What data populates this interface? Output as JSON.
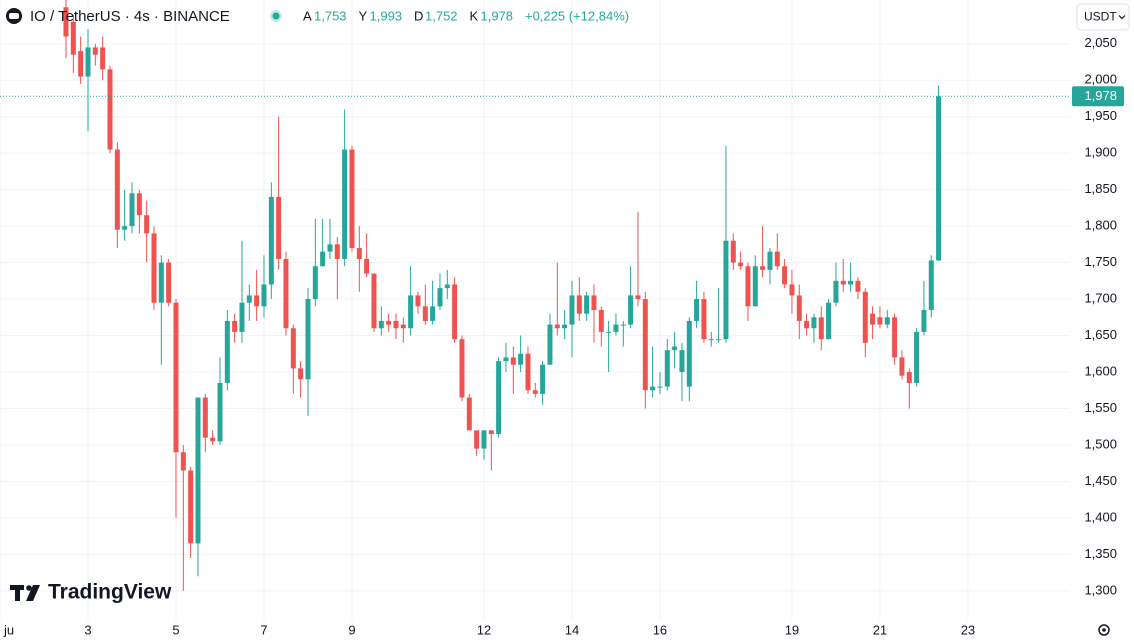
{
  "chart_data": {
    "type": "candlestick",
    "title": "IO / TetherUS · 4s · BINANCE",
    "ohlc_legend": [
      {
        "key": "A",
        "label": "1,753"
      },
      {
        "key": "Y",
        "label": "1,993"
      },
      {
        "key": "D",
        "label": "1,752"
      },
      {
        "key": "K",
        "label": "1,978"
      }
    ],
    "change_label": "+0,225 (+12,84%)",
    "currency": "USDT",
    "watermark": "TradingView",
    "last_price": {
      "value": 1.978,
      "label": "1,978"
    },
    "up_color": "#26a69a",
    "down_color": "#ef5350",
    "grid": true,
    "xlim": [
      1,
      25.32
    ],
    "ylim": [
      1.26,
      2.11
    ],
    "xticks": [
      {
        "value": 1,
        "label": "ju"
      },
      3,
      5,
      7,
      9,
      12,
      14,
      16,
      19,
      21,
      23
    ],
    "yticks": [
      {
        "value": 1.3,
        "label": "1,300"
      },
      {
        "value": 1.35,
        "label": "1,350"
      },
      {
        "value": 1.4,
        "label": "1,400"
      },
      {
        "value": 1.45,
        "label": "1,450"
      },
      {
        "value": 1.5,
        "label": "1,500"
      },
      {
        "value": 1.55,
        "label": "1,550"
      },
      {
        "value": 1.6,
        "label": "1,600"
      },
      {
        "value": 1.65,
        "label": "1,650"
      },
      {
        "value": 1.7,
        "label": "1,700"
      },
      {
        "value": 1.75,
        "label": "1,750"
      },
      {
        "value": 1.8,
        "label": "1,800"
      },
      {
        "value": 1.85,
        "label": "1,850"
      },
      {
        "value": 1.9,
        "label": "1,900"
      },
      {
        "value": 1.95,
        "label": "1,950"
      },
      {
        "value": 2.0,
        "label": "2,000"
      },
      {
        "value": 2.05,
        "label": "2,050"
      }
    ],
    "x": [
      2.5,
      2.667,
      2.833,
      3,
      3.167,
      3.333,
      3.5,
      3.667,
      3.833,
      4,
      4.167,
      4.333,
      4.5,
      4.667,
      4.833,
      5,
      5.167,
      5.333,
      5.5,
      5.667,
      5.833,
      6,
      6.167,
      6.333,
      6.5,
      6.667,
      6.833,
      7,
      7.167,
      7.333,
      7.5,
      7.667,
      7.833,
      8,
      8.167,
      8.333,
      8.5,
      8.667,
      8.833,
      9,
      9.167,
      9.333,
      9.5,
      9.667,
      9.833,
      10,
      10.167,
      10.333,
      10.5,
      10.667,
      10.833,
      11,
      11.167,
      11.333,
      11.5,
      11.667,
      11.833,
      12,
      12.167,
      12.333,
      12.5,
      12.667,
      12.833,
      13,
      13.167,
      13.333,
      13.5,
      13.667,
      13.833,
      14,
      14.167,
      14.333,
      14.5,
      14.667,
      14.833,
      15,
      15.167,
      15.333,
      15.5,
      15.667,
      15.833,
      16,
      16.167,
      16.333,
      16.5,
      16.667,
      16.833,
      17,
      17.167,
      17.333,
      17.5,
      17.667,
      17.833,
      18,
      18.167,
      18.333,
      18.5,
      18.667,
      18.833,
      19,
      19.167,
      19.333,
      19.5,
      19.667,
      19.833,
      20,
      20.167,
      20.333,
      20.5,
      20.667,
      20.833,
      21,
      21.167,
      21.333,
      21.5,
      21.667,
      21.833,
      22,
      22.167,
      22.333
    ],
    "open": [
      2.1,
      2.08,
      2.04,
      2.005,
      2.045,
      2.045,
      2.015,
      1.905,
      1.795,
      1.8,
      1.845,
      1.815,
      1.79,
      1.695,
      1.75,
      1.695,
      1.49,
      1.465,
      1.365,
      1.565,
      1.51,
      1.505,
      1.585,
      1.67,
      1.655,
      1.695,
      1.705,
      1.69,
      1.72,
      1.84,
      1.755,
      1.66,
      1.605,
      1.59,
      1.7,
      1.745,
      1.765,
      1.775,
      1.755,
      1.905,
      1.77,
      1.755,
      1.735,
      1.66,
      1.67,
      1.67,
      1.665,
      1.66,
      1.705,
      1.69,
      1.67,
      1.69,
      1.715,
      1.72,
      1.645,
      1.565,
      1.52,
      1.495,
      1.52,
      1.515,
      1.615,
      1.62,
      1.61,
      1.625,
      1.575,
      1.57,
      1.61,
      1.665,
      1.66,
      1.665,
      1.705,
      1.68,
      1.705,
      1.685,
      1.655,
      1.655,
      1.665,
      1.665,
      1.705,
      1.7,
      1.575,
      1.58,
      1.58,
      1.63,
      1.6,
      1.58,
      1.67,
      1.7,
      1.645,
      1.645,
      1.645,
      1.78,
      1.75,
      1.745,
      1.69,
      1.745,
      1.74,
      1.765,
      1.745,
      1.72,
      1.705,
      1.67,
      1.66,
      1.675,
      1.645,
      1.695,
      1.725,
      1.72,
      1.725,
      1.71,
      1.68,
      1.675,
      1.665,
      1.675,
      1.62,
      1.6,
      1.585,
      1.655,
      1.685,
      1.753
    ],
    "high": [
      2.12,
      2.09,
      2.06,
      2.07,
      2.05,
      2.06,
      2.02,
      1.915,
      1.85,
      1.86,
      1.85,
      1.835,
      1.8,
      1.76,
      1.755,
      1.7,
      1.5,
      1.47,
      1.565,
      1.57,
      1.52,
      1.62,
      1.685,
      1.68,
      1.78,
      1.72,
      1.74,
      1.76,
      1.86,
      1.95,
      1.765,
      1.665,
      1.615,
      1.715,
      1.81,
      1.81,
      1.81,
      1.785,
      1.96,
      1.91,
      1.8,
      1.79,
      1.735,
      1.69,
      1.68,
      1.68,
      1.675,
      1.745,
      1.71,
      1.72,
      1.725,
      1.735,
      1.74,
      1.73,
      1.65,
      1.57,
      1.52,
      1.52,
      1.52,
      1.62,
      1.64,
      1.635,
      1.65,
      1.635,
      1.585,
      1.615,
      1.68,
      1.75,
      1.685,
      1.725,
      1.73,
      1.71,
      1.72,
      1.69,
      1.67,
      1.68,
      1.67,
      1.745,
      1.82,
      1.71,
      1.635,
      1.6,
      1.645,
      1.655,
      1.64,
      1.675,
      1.725,
      1.71,
      1.655,
      1.715,
      1.91,
      1.79,
      1.765,
      1.75,
      1.76,
      1.8,
      1.77,
      1.79,
      1.755,
      1.74,
      1.72,
      1.68,
      1.68,
      1.69,
      1.7,
      1.75,
      1.755,
      1.75,
      1.73,
      1.715,
      1.69,
      1.69,
      1.685,
      1.68,
      1.63,
      1.605,
      1.66,
      1.725,
      1.76,
      1.993
    ],
    "low": [
      2.03,
      2.01,
      1.995,
      1.93,
      2.02,
      2.0,
      1.9,
      1.77,
      1.78,
      1.79,
      1.79,
      1.75,
      1.685,
      1.61,
      1.69,
      1.4,
      1.3,
      1.345,
      1.32,
      1.49,
      1.5,
      1.5,
      1.575,
      1.64,
      1.64,
      1.67,
      1.67,
      1.675,
      1.7,
      1.74,
      1.65,
      1.57,
      1.565,
      1.54,
      1.69,
      1.745,
      1.755,
      1.7,
      1.745,
      1.765,
      1.71,
      1.73,
      1.655,
      1.65,
      1.655,
      1.645,
      1.64,
      1.65,
      1.68,
      1.665,
      1.665,
      1.685,
      1.7,
      1.64,
      1.56,
      1.52,
      1.485,
      1.48,
      1.465,
      1.51,
      1.6,
      1.57,
      1.6,
      1.57,
      1.565,
      1.555,
      1.61,
      1.65,
      1.645,
      1.62,
      1.67,
      1.67,
      1.64,
      1.635,
      1.6,
      1.65,
      1.635,
      1.66,
      1.69,
      1.55,
      1.565,
      1.57,
      1.575,
      1.605,
      1.56,
      1.56,
      1.66,
      1.64,
      1.635,
      1.64,
      1.64,
      1.74,
      1.74,
      1.67,
      1.69,
      1.73,
      1.72,
      1.74,
      1.715,
      1.68,
      1.645,
      1.65,
      1.64,
      1.63,
      1.645,
      1.69,
      1.71,
      1.71,
      1.7,
      1.62,
      1.645,
      1.66,
      1.66,
      1.61,
      1.59,
      1.55,
      1.58,
      1.65,
      1.675,
      1.752
    ],
    "close": [
      2.06,
      2.035,
      2.005,
      2.045,
      2.035,
      2.015,
      1.905,
      1.795,
      1.8,
      1.845,
      1.815,
      1.79,
      1.695,
      1.75,
      1.695,
      1.49,
      1.465,
      1.365,
      1.565,
      1.51,
      1.505,
      1.585,
      1.67,
      1.655,
      1.695,
      1.705,
      1.69,
      1.72,
      1.84,
      1.755,
      1.66,
      1.605,
      1.59,
      1.7,
      1.745,
      1.765,
      1.775,
      1.755,
      1.905,
      1.77,
      1.755,
      1.735,
      1.66,
      1.67,
      1.665,
      1.66,
      1.66,
      1.705,
      1.69,
      1.67,
      1.69,
      1.715,
      1.72,
      1.645,
      1.565,
      1.52,
      1.495,
      1.52,
      1.515,
      1.615,
      1.62,
      1.61,
      1.625,
      1.575,
      1.57,
      1.61,
      1.665,
      1.66,
      1.665,
      1.705,
      1.68,
      1.705,
      1.685,
      1.655,
      1.655,
      1.665,
      1.665,
      1.705,
      1.7,
      1.575,
      1.58,
      1.58,
      1.63,
      1.635,
      1.63,
      1.67,
      1.7,
      1.645,
      1.645,
      1.645,
      1.78,
      1.75,
      1.745,
      1.69,
      1.745,
      1.74,
      1.765,
      1.745,
      1.72,
      1.705,
      1.67,
      1.66,
      1.675,
      1.645,
      1.695,
      1.725,
      1.72,
      1.725,
      1.71,
      1.64,
      1.665,
      1.665,
      1.675,
      1.62,
      1.595,
      1.585,
      1.655,
      1.685,
      1.753,
      1.978
    ]
  }
}
